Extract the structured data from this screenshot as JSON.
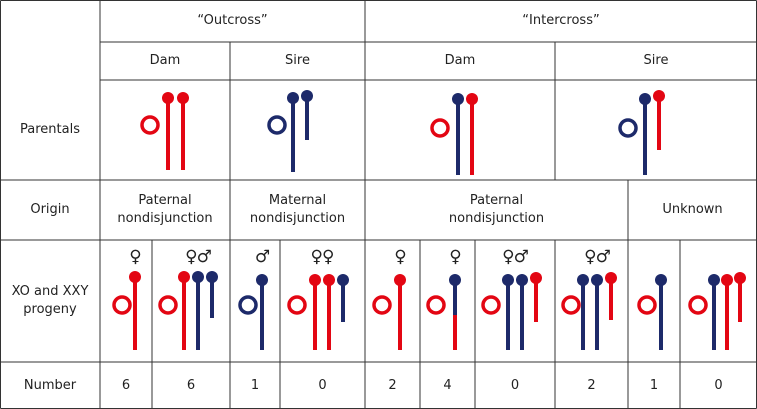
{
  "table": {
    "groups": [
      "“Outcross”",
      "“Intercross”"
    ],
    "parents": [
      "Dam",
      "Sire",
      "Dam",
      "Sire"
    ],
    "row_labels": [
      "Parentals",
      "Origin",
      "XO and XXY progeny",
      "Number"
    ],
    "origins": [
      "Paternal nondisjunction",
      "Maternal nondisjunction",
      "Paternal nondisjunction",
      "Unknown"
    ],
    "progeny": [
      {
        "sex": "♀",
        "number": "6"
      },
      {
        "sex": "♀♂",
        "number": "6"
      },
      {
        "sex": "♂",
        "number": "1"
      },
      {
        "sex": "♀♀",
        "number": "0"
      },
      {
        "sex": "♀",
        "number": "2"
      },
      {
        "sex": "♀",
        "number": "4"
      },
      {
        "sex": "♀♂",
        "number": "0"
      },
      {
        "sex": "♀♂",
        "number": "2"
      },
      {
        "number": "1"
      },
      {
        "number": "0"
      }
    ]
  }
}
